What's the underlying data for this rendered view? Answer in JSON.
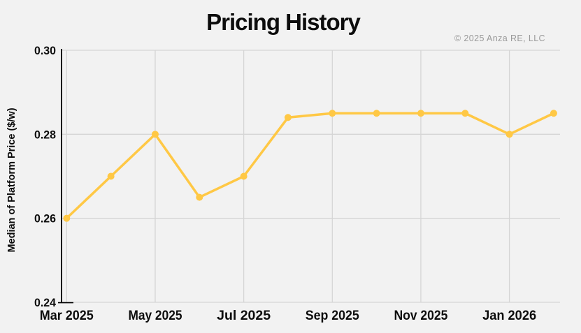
{
  "header": {
    "title": "Pricing History",
    "copyright": "© 2025 Anza RE, LLC"
  },
  "chart_data": {
    "type": "line",
    "title": "Pricing History",
    "xlabel": "",
    "ylabel": "Median of Platform Price ($/w)",
    "x": [
      "Mar 2025",
      "Apr 2025",
      "May 2025",
      "Jun 2025",
      "Jul 2025",
      "Aug 2025",
      "Sep 2025",
      "Oct 2025",
      "Nov 2025",
      "Dec 2025",
      "Jan 2026",
      "Feb 2026"
    ],
    "series": [
      {
        "name": "Median of Platform Price ($/w)",
        "values": [
          0.26,
          0.27,
          0.28,
          0.265,
          0.27,
          0.284,
          0.285,
          0.285,
          0.285,
          0.285,
          0.28,
          0.285
        ]
      }
    ],
    "ylim": [
      0.24,
      0.3
    ],
    "ytick_values": [
      0.24,
      0.26,
      0.28,
      0.3
    ],
    "ytick_labels": [
      "0.24",
      "0.26",
      "0.28",
      "0.30"
    ],
    "xtick_indices": [
      0,
      2,
      4,
      6,
      8,
      10
    ],
    "xtick_labels": [
      "Mar 2025",
      "May 2025",
      "Jul 2025",
      "Sep 2025",
      "Nov 2025",
      "Jan 2026"
    ],
    "grid": true,
    "legend": "none",
    "colors": {
      "line": "#FFC845",
      "marker": "#FFC845",
      "grid": "#d5d5d5",
      "axis": "#000000",
      "text": "#0d0d0d",
      "muted": "#9a9a9a",
      "background": "#f2f2f2"
    }
  }
}
